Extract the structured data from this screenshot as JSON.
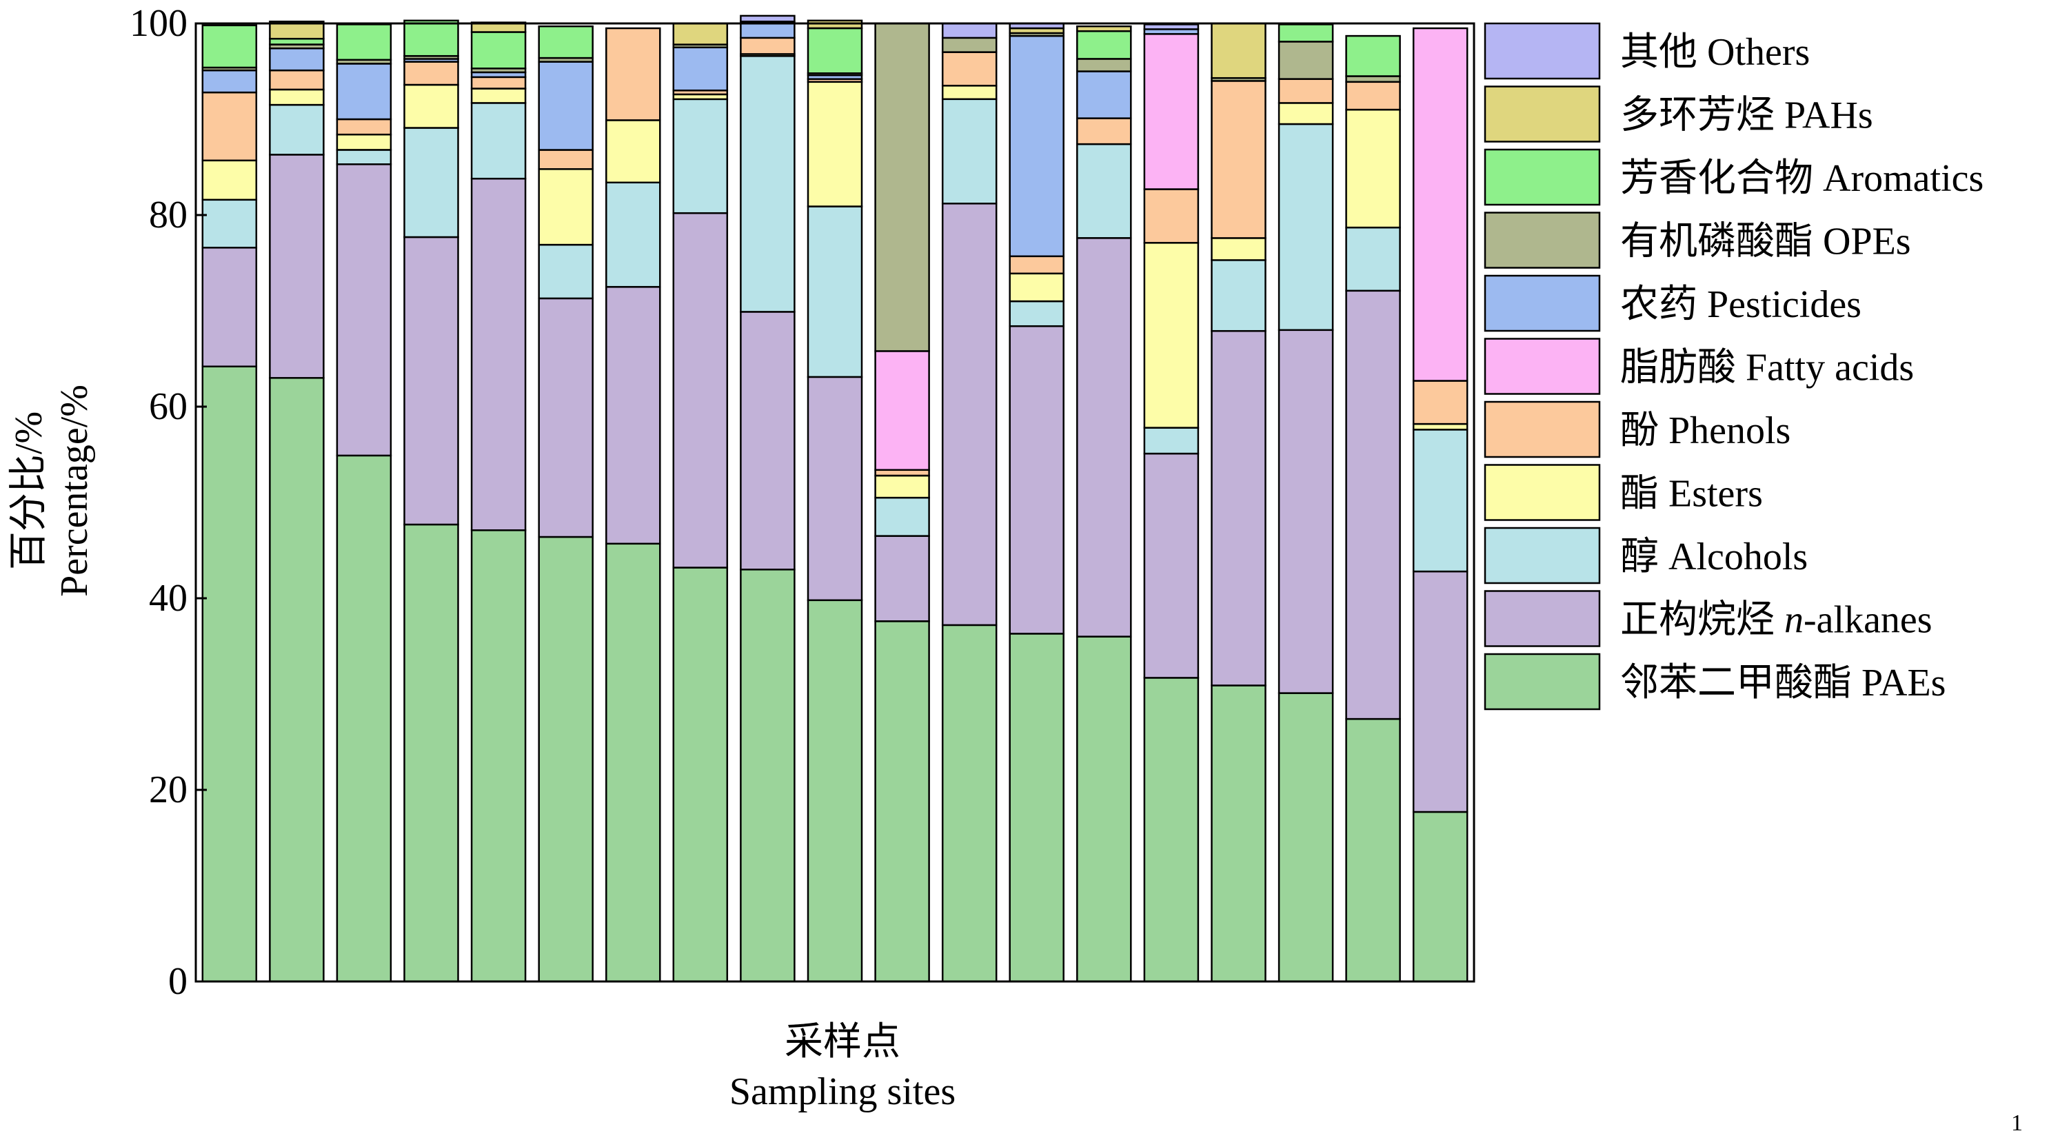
{
  "chart_data": {
    "type": "bar",
    "stacked": true,
    "title": "",
    "xlabel_cn": "采样点",
    "xlabel_en": "Sampling sites",
    "ylabel_cn": "百分比/%",
    "ylabel_en": "Percentage/%",
    "ylim": [
      0,
      100
    ],
    "yticks": [
      0,
      20,
      40,
      60,
      80,
      100
    ],
    "grid": false,
    "legend_position": "right",
    "categories": [
      "",
      "",
      "",
      "",
      "",
      "",
      "",
      "",
      "",
      "",
      "",
      "",
      "",
      "",
      "",
      "",
      "",
      "",
      ""
    ],
    "series": [
      {
        "key": "paes",
        "name_prefix": "邻苯二甲酸酯 ",
        "name_italic": "",
        "name_suffix": "PAEs",
        "color": "#9bd49a",
        "values": [
          64.2,
          63.0,
          54.9,
          47.7,
          47.1,
          46.4,
          45.7,
          43.2,
          43.0,
          39.8,
          37.6,
          37.2,
          36.3,
          36.0,
          31.7,
          30.9,
          30.1,
          27.4,
          17.7
        ]
      },
      {
        "key": "alkanes",
        "name_prefix": "正构烷烃 ",
        "name_italic": "n",
        "name_suffix": "-alkanes",
        "color": "#c2b2d8",
        "values": [
          12.4,
          23.3,
          30.4,
          30.0,
          36.7,
          24.9,
          26.8,
          37.0,
          26.9,
          23.3,
          8.9,
          44.0,
          32.1,
          41.6,
          23.4,
          37.0,
          37.9,
          44.7,
          25.1
        ]
      },
      {
        "key": "alcohols",
        "name_prefix": "醇 ",
        "name_italic": "",
        "name_suffix": "Alcohols",
        "color": "#b8e3e8",
        "values": [
          5.0,
          5.2,
          1.5,
          11.4,
          7.9,
          5.6,
          10.9,
          11.9,
          26.7,
          17.8,
          4.0,
          10.9,
          2.6,
          9.8,
          2.7,
          7.4,
          21.5,
          6.6,
          14.8
        ]
      },
      {
        "key": "esters",
        "name_prefix": "酯 ",
        "name_italic": "",
        "name_suffix": "Esters",
        "color": "#fdfda8",
        "values": [
          4.1,
          1.6,
          1.6,
          4.5,
          1.5,
          7.9,
          6.5,
          0.5,
          0.2,
          13.0,
          2.3,
          1.4,
          2.9,
          0.0,
          19.3,
          2.3,
          2.2,
          12.3,
          0.6
        ]
      },
      {
        "key": "phenols",
        "name_prefix": "酚 ",
        "name_italic": "",
        "name_suffix": "Phenols",
        "color": "#fcc99c",
        "values": [
          7.1,
          2.0,
          1.6,
          2.4,
          1.2,
          2.0,
          9.6,
          0.4,
          1.7,
          0.3,
          0.6,
          3.5,
          1.8,
          2.7,
          5.6,
          16.4,
          2.5,
          2.9,
          4.5
        ]
      },
      {
        "key": "fatty_acids",
        "name_prefix": "脂肪酸 ",
        "name_italic": "",
        "name_suffix": "Fatty acids",
        "color": "#fcb3f4",
        "values": [
          0,
          0,
          0,
          0,
          0,
          0,
          0,
          0,
          0,
          0,
          12.4,
          0,
          0,
          0,
          16.2,
          0,
          0,
          0,
          36.8
        ]
      },
      {
        "key": "pesticides",
        "name_prefix": "农药 ",
        "name_italic": "",
        "name_suffix": "Pesticides",
        "color": "#9cbaf0",
        "values": [
          2.3,
          2.3,
          5.8,
          0.3,
          0.5,
          9.2,
          0,
          4.5,
          1.5,
          0.4,
          0,
          0,
          23.0,
          4.9,
          0.5,
          0,
          0,
          0,
          0
        ]
      },
      {
        "key": "opes",
        "name_prefix": "有机磷酸酯 ",
        "name_italic": "",
        "name_suffix": "OPEs",
        "color": "#afb78e",
        "values": [
          0.3,
          0.4,
          0.4,
          0.3,
          0.4,
          0.4,
          0,
          0.3,
          0.2,
          0.2,
          34.2,
          1.5,
          0.3,
          1.3,
          0,
          0.3,
          3.9,
          0.6,
          0
        ]
      },
      {
        "key": "aromatics",
        "name_prefix": "芳香化合物 ",
        "name_italic": "",
        "name_suffix": "Aromatics",
        "color": "#8ef08b",
        "values": [
          4.4,
          0.6,
          3.7,
          3.7,
          3.8,
          3.3,
          0,
          0,
          0,
          4.7,
          0,
          0,
          0,
          2.9,
          0,
          0,
          1.8,
          4.2,
          0
        ]
      },
      {
        "key": "pahs",
        "name_prefix": "多环芳烃 ",
        "name_italic": "",
        "name_suffix": "PAHs",
        "color": "#dfd67e",
        "values": [
          0,
          1.8,
          0,
          0,
          1.0,
          0,
          0,
          2.2,
          0,
          0.8,
          0,
          0,
          0.5,
          0.5,
          0,
          5.7,
          0,
          0,
          0
        ]
      },
      {
        "key": "others",
        "name_prefix": "其他 ",
        "name_italic": "",
        "name_suffix": "Others",
        "color": "#b5b5f3",
        "values": [
          0,
          0,
          0,
          0,
          0,
          0,
          0,
          0,
          0.6,
          0,
          0,
          1.5,
          0.5,
          0,
          0.5,
          0,
          0,
          0,
          0
        ]
      }
    ]
  },
  "page_number": "1"
}
